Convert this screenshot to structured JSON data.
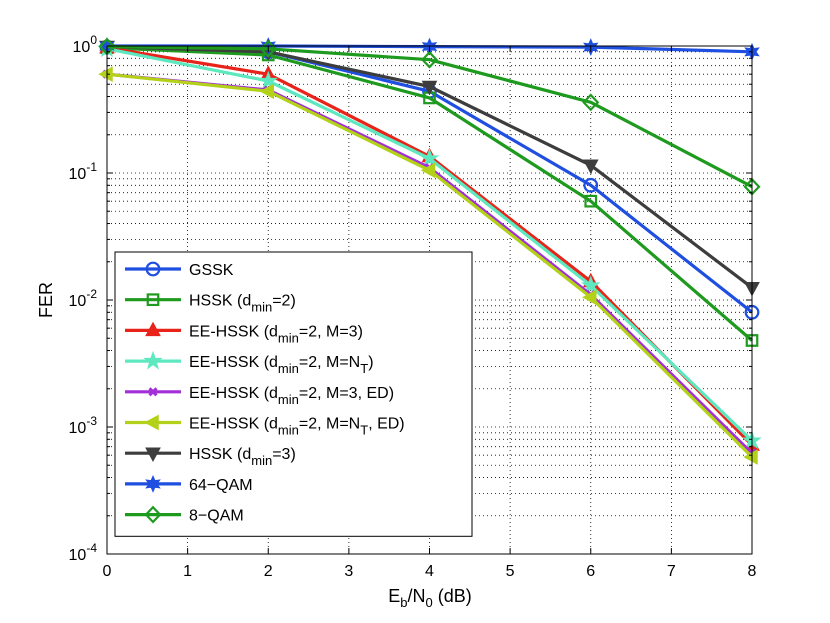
{
  "chart_data": {
    "type": "line",
    "title": "",
    "xlabel": {
      "main": "E",
      "sub1": "b",
      "mid": "/N",
      "sub2": "0",
      "tail": " (dB)"
    },
    "ylabel": "FER",
    "xlim": [
      0,
      8
    ],
    "ylim": [
      0.0001,
      1
    ],
    "yscale": "log",
    "grid": true,
    "x_ticks": [
      "0",
      "1",
      "2",
      "3",
      "4",
      "5",
      "6",
      "7",
      "8"
    ],
    "y_ticks": [
      {
        "base": "10",
        "exp": "0"
      },
      {
        "base": "10",
        "exp": "-1"
      },
      {
        "base": "10",
        "exp": "-2"
      },
      {
        "base": "10",
        "exp": "-3"
      },
      {
        "base": "10",
        "exp": "-4"
      }
    ],
    "legend_position": "bottom-left",
    "series": [
      {
        "name": "GSSK",
        "label_parts": [
          {
            "t": "GSSK"
          }
        ],
        "color": "#1f4fe0",
        "marker": "circle",
        "x": [
          0,
          2,
          4,
          6,
          8
        ],
        "values": [
          0.98,
          0.9,
          0.44,
          0.08,
          0.008
        ]
      },
      {
        "name": "HSSK (dmin=2)",
        "label_parts": [
          {
            "t": "HSSK (d"
          },
          {
            "t": "min",
            "sub": true
          },
          {
            "t": "=2)"
          }
        ],
        "color": "#1e9a1e",
        "marker": "square",
        "x": [
          0,
          2,
          4,
          6,
          8
        ],
        "values": [
          0.97,
          0.85,
          0.39,
          0.06,
          0.0048
        ]
      },
      {
        "name": "EE-HSSK (dmin=2, M=3)",
        "label_parts": [
          {
            "t": "EE-HSSK (d"
          },
          {
            "t": "min",
            "sub": true
          },
          {
            "t": "=2, M=3)"
          }
        ],
        "color": "#e8231a",
        "marker": "triangle-up",
        "x": [
          0,
          2,
          4,
          6,
          8
        ],
        "values": [
          0.97,
          0.6,
          0.135,
          0.014,
          0.00072
        ]
      },
      {
        "name": "EE-HSSK (dmin=2, M=NT)",
        "label_parts": [
          {
            "t": "EE-HSSK (d"
          },
          {
            "t": "min",
            "sub": true
          },
          {
            "t": "=2, M=N"
          },
          {
            "t": "T",
            "sub": true
          },
          {
            "t": ")"
          }
        ],
        "color": "#5ee8c0",
        "marker": "star5",
        "x": [
          0,
          2,
          4,
          6,
          8
        ],
        "values": [
          0.95,
          0.53,
          0.13,
          0.013,
          0.00078
        ]
      },
      {
        "name": "EE-HSSK (dmin=2, M=3, ED)",
        "label_parts": [
          {
            "t": "EE-HSSK (d"
          },
          {
            "t": "min",
            "sub": true
          },
          {
            "t": "=2, M=3, ED)"
          }
        ],
        "color": "#a22fd8",
        "marker": "x",
        "x": [
          0,
          2,
          4,
          6,
          8
        ],
        "values": [
          0.6,
          0.45,
          0.11,
          0.011,
          0.00062
        ]
      },
      {
        "name": "EE-HSSK (dmin=2, M=NT, ED)",
        "label_parts": [
          {
            "t": "EE-HSSK (d"
          },
          {
            "t": "min",
            "sub": true
          },
          {
            "t": "=2, M=N"
          },
          {
            "t": "T",
            "sub": true
          },
          {
            "t": ", ED)"
          }
        ],
        "color": "#b4d11a",
        "marker": "triangle-left",
        "x": [
          0,
          2,
          4,
          6,
          8
        ],
        "values": [
          0.6,
          0.44,
          0.105,
          0.0105,
          0.00058
        ]
      },
      {
        "name": "HSSK (dmin=3)",
        "label_parts": [
          {
            "t": "HSSK (d"
          },
          {
            "t": "min",
            "sub": true
          },
          {
            "t": "=3)"
          }
        ],
        "color": "#3d3d3d",
        "marker": "triangle-down",
        "x": [
          0,
          2,
          4,
          6,
          8
        ],
        "values": [
          0.99,
          0.9,
          0.48,
          0.115,
          0.0125
        ]
      },
      {
        "name": "64-QAM",
        "label_parts": [
          {
            "t": "64−QAM"
          }
        ],
        "color": "#1f4fe0",
        "marker": "star6",
        "x": [
          0,
          2,
          4,
          6,
          8
        ],
        "values": [
          1.0,
          1.0,
          0.99,
          0.98,
          0.9
        ]
      },
      {
        "name": "8-QAM",
        "label_parts": [
          {
            "t": "8−QAM"
          }
        ],
        "color": "#1e9a1e",
        "marker": "diamond",
        "x": [
          0,
          2,
          4,
          6,
          8
        ],
        "values": [
          0.99,
          0.95,
          0.78,
          0.36,
          0.078
        ]
      }
    ]
  }
}
